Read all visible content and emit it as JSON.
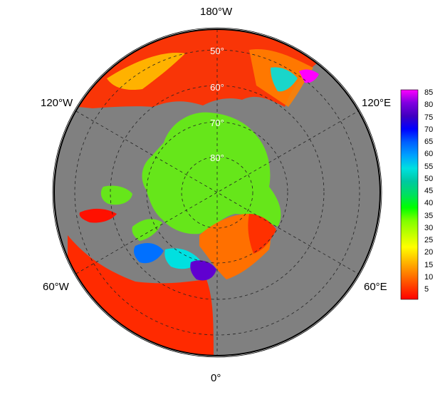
{
  "map": {
    "projection": "north polar stereographic",
    "ocean_color": "#808080",
    "land_color": "#808080",
    "longitude_labels": {
      "top": "180°W",
      "left": "120°W",
      "right": "120°E",
      "lower_left": "60°W",
      "lower_right": "60°E",
      "bottom": "0°"
    },
    "latitude_labels": [
      "50°",
      "60°",
      "70°",
      "80°"
    ]
  },
  "colorbar": {
    "ticks": [
      "85",
      "80",
      "75",
      "70",
      "65",
      "60",
      "55",
      "50",
      "45",
      "40",
      "35",
      "30",
      "25",
      "20",
      "15",
      "10",
      "5"
    ],
    "colors": [
      "#ff0000",
      "#ff4000",
      "#ff8000",
      "#ffc000",
      "#ffff00",
      "#c0ff00",
      "#80ff00",
      "#00ff00",
      "#00e060",
      "#00c8a0",
      "#00e0e0",
      "#00a0ff",
      "#0060ff",
      "#0000ff",
      "#4000c0",
      "#8000e0",
      "#ff00ff"
    ]
  }
}
